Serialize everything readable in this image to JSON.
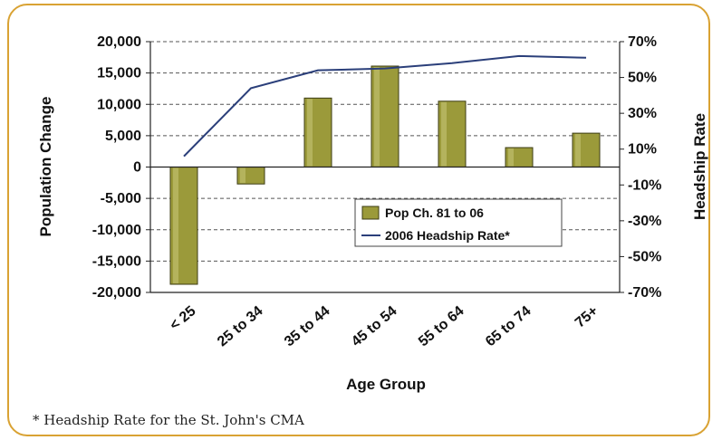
{
  "chart_data": {
    "type": "bar",
    "categories": [
      "< 25",
      "25 to 34",
      "35 to 44",
      "45 to 54",
      "55 to 64",
      "65 to 74",
      "75+"
    ],
    "series": [
      {
        "name": "Pop Ch. 81 to 06",
        "type": "bar",
        "axis": "left",
        "values": [
          -18700,
          -2700,
          11000,
          16100,
          10500,
          3100,
          5400
        ]
      },
      {
        "name": "2006 Headship Rate*",
        "type": "line",
        "axis": "right",
        "values": [
          6,
          44,
          54,
          55,
          58,
          62,
          61
        ]
      }
    ],
    "xlabel": "Age Group",
    "ylabel": "Population Change",
    "y2label": "Headship Rate",
    "ylim": [
      -20000,
      20000
    ],
    "y2lim": [
      -70,
      70
    ],
    "y_ticks": [
      "20,000",
      "15,000",
      "10,000",
      "5,000",
      "0",
      "-5,000",
      "-10,000",
      "-15,000",
      "-20,000"
    ],
    "y2_ticks": [
      "70%",
      "50%",
      "30%",
      "10%",
      "-10%",
      "-30%",
      "-50%",
      "-70%"
    ],
    "grid": "horizontal dashed",
    "legend_position": "lower-right inside plot",
    "colors": {
      "bar": "#9b9a3a",
      "bar_edge": "#3c3c14",
      "line": "#2b3f7a",
      "frame": "#d9a233"
    }
  },
  "footnote": "* Headship Rate for the St. John's CMA"
}
